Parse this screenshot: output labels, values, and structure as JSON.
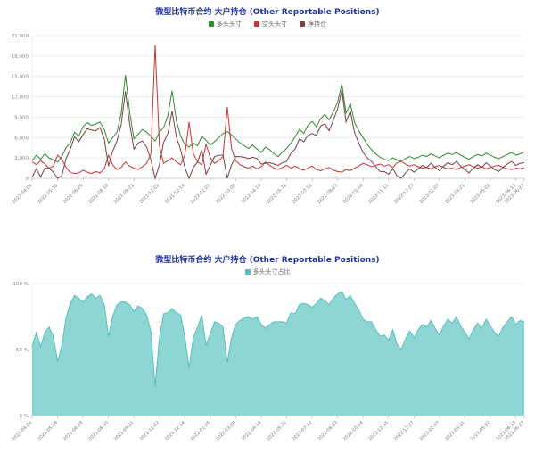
{
  "chart_data": [
    {
      "type": "line",
      "title": "微型比特币合约 大户持仓 (Other Reportable Positions)",
      "title_color": "#2233aa",
      "ylabel": "",
      "xlabel": "",
      "ylim": [
        0,
        21000
      ],
      "ytick_step": 3000,
      "grid": true,
      "legend_position": "top",
      "xtick_every": 6,
      "x": [
        "2021-04-06",
        "2021-04-13",
        "2021-04-20",
        "2021-04-27",
        "2021-05-04",
        "2021-05-11",
        "2021-05-18",
        "2021-05-25",
        "2021-06-01",
        "2021-06-08",
        "2021-06-15",
        "2021-06-22",
        "2021-06-29",
        "2021-07-06",
        "2021-07-13",
        "2021-07-20",
        "2021-07-27",
        "2021-08-03",
        "2021-08-10",
        "2021-08-17",
        "2021-08-24",
        "2021-08-31",
        "2021-09-07",
        "2021-09-14",
        "2021-09-21",
        "2021-09-28",
        "2021-10-05",
        "2021-10-12",
        "2021-10-19",
        "2021-10-26",
        "2021-11-02",
        "2021-11-09",
        "2021-11-16",
        "2021-11-23",
        "2021-11-30",
        "2021-12-07",
        "2021-12-14",
        "2021-12-21",
        "2021-12-28",
        "2022-01-04",
        "2022-01-11",
        "2022-01-18",
        "2022-01-25",
        "2022-02-01",
        "2022-02-08",
        "2022-02-15",
        "2022-02-22",
        "2022-03-01",
        "2022-03-08",
        "2022-03-15",
        "2022-03-22",
        "2022-03-29",
        "2022-04-05",
        "2022-04-12",
        "2022-04-19",
        "2022-04-26",
        "2022-05-03",
        "2022-05-10",
        "2022-05-17",
        "2022-05-24",
        "2022-05-31",
        "2022-06-07",
        "2022-06-14",
        "2022-06-21",
        "2022-06-28",
        "2022-07-05",
        "2022-07-12",
        "2022-07-19",
        "2022-07-26",
        "2022-08-02",
        "2022-08-09",
        "2022-08-16",
        "2022-08-23",
        "2022-08-30",
        "2022-09-06",
        "2022-09-13",
        "2022-09-20",
        "2022-09-27",
        "2022-10-04",
        "2022-10-11",
        "2022-10-18",
        "2022-10-25",
        "2022-11-01",
        "2022-11-08",
        "2022-11-15",
        "2022-11-22",
        "2022-11-29",
        "2022-12-06",
        "2022-12-13",
        "2022-12-20",
        "2022-12-27",
        "2023-01-03",
        "2023-01-10",
        "2023-01-17",
        "2023-01-24",
        "2023-01-31",
        "2023-02-07",
        "2023-02-14",
        "2023-02-21",
        "2023-02-28",
        "2023-03-07",
        "2023-03-14",
        "2023-03-21",
        "2023-03-28",
        "2023-04-04",
        "2023-04-11",
        "2023-04-18",
        "2023-04-25",
        "2023-05-02",
        "2023-05-09",
        "2023-05-16",
        "2023-05-23",
        "2023-05-30",
        "2023-06-06",
        "2023-06-13",
        "2023-06-20",
        "2023-06-27"
      ],
      "series": [
        {
          "name": "多头头寸",
          "color": "#2f8b2f",
          "values": [
            2600,
            3400,
            2800,
            3600,
            3000,
            2700,
            2400,
            3200,
            4500,
            5200,
            6800,
            6200,
            7600,
            8200,
            7800,
            8000,
            8300,
            7200,
            5200,
            6000,
            6800,
            9500,
            15200,
            9800,
            5800,
            6500,
            7200,
            6800,
            6200,
            5500,
            6800,
            7500,
            9200,
            12900,
            8500,
            6200,
            5000,
            4600,
            5200,
            4800,
            6200,
            5600,
            4900,
            5400,
            6000,
            6600,
            6900,
            6400,
            5800,
            5200,
            4800,
            4400,
            4900,
            4300,
            3800,
            4600,
            4200,
            3600,
            3200,
            3900,
            4400,
            5200,
            6100,
            7200,
            6600,
            7800,
            8400,
            7600,
            8800,
            9400,
            8600,
            9800,
            11200,
            13900,
            9600,
            11000,
            8200,
            7000,
            6000,
            5000,
            4200,
            3600,
            3100,
            2800,
            2600,
            3000,
            2700,
            2500,
            2900,
            3200,
            2900,
            3100,
            3400,
            3200,
            3600,
            3300,
            3000,
            3400,
            3700,
            3500,
            3800,
            3400,
            3100,
            2800,
            3200,
            3500,
            3300,
            3700,
            3400,
            3100,
            2900,
            3200,
            3500,
            3800,
            3400,
            3600,
            3900
          ]
        },
        {
          "name": "空头头寸",
          "color": "#cc3333",
          "values": [
            2400,
            2000,
            2600,
            2100,
            1500,
            1800,
            3400,
            2800,
            1600,
            900,
            700,
            800,
            1200,
            900,
            700,
            1000,
            800,
            1400,
            3400,
            2000,
            1300,
            1600,
            2400,
            1800,
            1500,
            1300,
            1700,
            2200,
            3500,
            19600,
            4800,
            2200,
            2600,
            3000,
            2400,
            2000,
            3400,
            8300,
            3600,
            2400,
            2000,
            5000,
            3000,
            2200,
            2600,
            3200,
            10500,
            4400,
            2600,
            2000,
            1700,
            1500,
            1800,
            1400,
            1700,
            2400,
            1900,
            1500,
            1300,
            1600,
            1900,
            1500,
            1800,
            1400,
            1200,
            1500,
            1800,
            1300,
            1100,
            1400,
            1600,
            1200,
            1000,
            900,
            1300,
            1100,
            1500,
            1800,
            2200,
            2000,
            1700,
            1900,
            2100,
            1800,
            2000,
            1600,
            2300,
            2500,
            2100,
            1800,
            2000,
            1700,
            1500,
            1600,
            1400,
            1700,
            1900,
            1600,
            1400,
            1500,
            1300,
            1600,
            1800,
            2000,
            1700,
            1500,
            1700,
            1400,
            1600,
            1800,
            1900,
            1600,
            1400,
            1300,
            1500,
            1400,
            1600
          ]
        },
        {
          "name": "净持仓",
          "color": "#7a4040",
          "values": [
            200,
            1400,
            200,
            1500,
            1500,
            900,
            0,
            400,
            2900,
            4300,
            6100,
            5400,
            6400,
            7300,
            7100,
            7000,
            7500,
            5800,
            1800,
            4000,
            5500,
            7900,
            12800,
            8000,
            4300,
            5200,
            5500,
            4600,
            2700,
            0,
            2000,
            5300,
            6600,
            9900,
            6100,
            4200,
            1600,
            0,
            1600,
            2400,
            4200,
            600,
            1900,
            3200,
            3400,
            3400,
            0,
            2000,
            3200,
            3200,
            3100,
            2900,
            3100,
            2900,
            2100,
            2200,
            2300,
            2100,
            1900,
            2300,
            2500,
            3700,
            4300,
            5800,
            5400,
            6300,
            6600,
            6300,
            7700,
            8000,
            7000,
            8600,
            10200,
            13000,
            8300,
            9900,
            6700,
            5200,
            3800,
            3000,
            2500,
            1700,
            1000,
            1000,
            600,
            1400,
            400,
            0,
            800,
            1400,
            900,
            1400,
            1900,
            1600,
            2200,
            1600,
            1100,
            1800,
            2300,
            2000,
            2500,
            1800,
            1300,
            800,
            1500,
            2000,
            1600,
            2300,
            1800,
            1300,
            1000,
            1600,
            2100,
            2500,
            1900,
            2200,
            2300
          ]
        }
      ]
    },
    {
      "type": "area",
      "title": "微型比特币合约 大户持仓 (Other Reportable Positions)",
      "title_color": "#2233aa",
      "ylabel": "",
      "xlabel": "",
      "ylim": [
        0,
        100
      ],
      "ytick_step": 50,
      "ytick_suffix": " %",
      "grid": true,
      "legend_position": "top",
      "xtick_every": 6,
      "x": [
        "2021-04-06",
        "2021-04-13",
        "2021-04-20",
        "2021-04-27",
        "2021-05-04",
        "2021-05-11",
        "2021-05-18",
        "2021-05-25",
        "2021-06-01",
        "2021-06-08",
        "2021-06-15",
        "2021-06-22",
        "2021-06-29",
        "2021-07-06",
        "2021-07-13",
        "2021-07-20",
        "2021-07-27",
        "2021-08-03",
        "2021-08-10",
        "2021-08-17",
        "2021-08-24",
        "2021-08-31",
        "2021-09-07",
        "2021-09-14",
        "2021-09-21",
        "2021-09-28",
        "2021-10-05",
        "2021-10-12",
        "2021-10-19",
        "2021-10-26",
        "2021-11-02",
        "2021-11-09",
        "2021-11-16",
        "2021-11-23",
        "2021-11-30",
        "2021-12-07",
        "2021-12-14",
        "2021-12-21",
        "2021-12-28",
        "2022-01-04",
        "2022-01-11",
        "2022-01-18",
        "2022-01-25",
        "2022-02-01",
        "2022-02-08",
        "2022-02-15",
        "2022-02-22",
        "2022-03-01",
        "2022-03-08",
        "2022-03-15",
        "2022-03-22",
        "2022-03-29",
        "2022-04-05",
        "2022-04-12",
        "2022-04-19",
        "2022-04-26",
        "2022-05-03",
        "2022-05-10",
        "2022-05-17",
        "2022-05-24",
        "2022-05-31",
        "2022-06-07",
        "2022-06-14",
        "2022-06-21",
        "2022-06-28",
        "2022-07-05",
        "2022-07-12",
        "2022-07-19",
        "2022-07-26",
        "2022-08-02",
        "2022-08-09",
        "2022-08-16",
        "2022-08-23",
        "2022-08-30",
        "2022-09-06",
        "2022-09-13",
        "2022-09-20",
        "2022-09-27",
        "2022-10-04",
        "2022-10-11",
        "2022-10-18",
        "2022-10-25",
        "2022-11-01",
        "2022-11-08",
        "2022-11-15",
        "2022-11-22",
        "2022-11-29",
        "2022-12-06",
        "2022-12-13",
        "2022-12-20",
        "2022-12-27",
        "2023-01-03",
        "2023-01-10",
        "2023-01-17",
        "2023-01-24",
        "2023-01-31",
        "2023-02-07",
        "2023-02-14",
        "2023-02-21",
        "2023-02-28",
        "2023-03-07",
        "2023-03-14",
        "2023-03-21",
        "2023-03-28",
        "2023-04-04",
        "2023-04-11",
        "2023-04-18",
        "2023-04-25",
        "2023-05-02",
        "2023-05-09",
        "2023-05-16",
        "2023-05-23",
        "2023-05-30",
        "2023-06-06",
        "2023-06-13",
        "2023-06-20",
        "2023-06-27"
      ],
      "series": [
        {
          "name": "多头头寸占比",
          "color": "#5bbcbc",
          "fill": "#8ed6d4",
          "values": [
            52,
            63,
            52,
            63,
            67,
            60,
            41,
            53,
            74,
            85,
            91,
            89,
            86,
            90,
            92,
            89,
            91,
            84,
            60,
            75,
            84,
            86,
            86,
            84,
            79,
            83,
            81,
            76,
            64,
            22,
            59,
            77,
            78,
            81,
            78,
            76,
            60,
            36,
            59,
            67,
            76,
            53,
            62,
            71,
            70,
            67,
            40,
            59,
            69,
            72,
            74,
            75,
            73,
            75,
            69,
            66,
            69,
            71,
            71,
            71,
            70,
            78,
            77,
            84,
            85,
            84,
            82,
            85,
            89,
            87,
            84,
            89,
            92,
            94,
            88,
            91,
            85,
            80,
            73,
            71,
            71,
            65,
            60,
            61,
            57,
            65,
            54,
            50,
            58,
            64,
            59,
            65,
            69,
            67,
            72,
            66,
            61,
            68,
            73,
            70,
            75,
            68,
            63,
            58,
            65,
            70,
            66,
            73,
            68,
            63,
            60,
            67,
            71,
            75,
            69,
            72,
            71
          ]
        }
      ]
    }
  ]
}
